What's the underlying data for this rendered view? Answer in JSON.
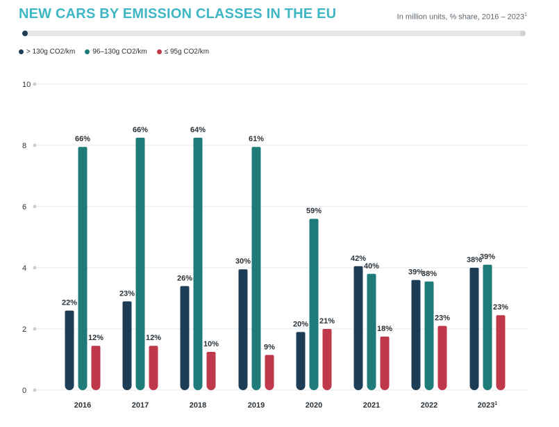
{
  "header": {
    "title": "NEW CARS BY EMISSION CLASSES IN THE EU",
    "subtitle": "In million units, % share, 2016 – 2023",
    "subtitle_sup": "1"
  },
  "legend": [
    {
      "label": "> 130g CO2/km",
      "color": "#1d3c55"
    },
    {
      "label": "96–130g CO2/km",
      "color": "#1f7a7a"
    },
    {
      "label": "≤ 95g CO2/km",
      "color": "#c0394a"
    }
  ],
  "chart_data": {
    "type": "bar",
    "title": "NEW CARS BY EMISSION CLASSES IN THE EU",
    "subtitle": "In million units, % share, 2016 – 2023",
    "xlabel": "",
    "ylabel": "",
    "ylim": [
      0,
      10
    ],
    "yticks": [
      0,
      2,
      4,
      6,
      8,
      10
    ],
    "grid": true,
    "legend_position": "top-left",
    "categories": [
      "2016",
      "2017",
      "2018",
      "2019",
      "2020",
      "2021",
      "2022",
      "2023"
    ],
    "category_superscripts": [
      "",
      "",
      "",
      "",
      "",
      "",
      "",
      "1"
    ],
    "series": [
      {
        "name": "> 130g CO2/km",
        "color": "#1d3c55",
        "values": [
          2.6,
          2.9,
          3.4,
          3.95,
          1.9,
          4.05,
          3.6,
          4.0
        ],
        "labels": [
          "22%",
          "23%",
          "26%",
          "30%",
          "20%",
          "42%",
          "39%",
          "38%"
        ]
      },
      {
        "name": "96–130g CO2/km",
        "color": "#1f7a7a",
        "values": [
          7.95,
          8.25,
          8.25,
          7.95,
          5.6,
          3.8,
          3.55,
          4.1
        ],
        "labels": [
          "66%",
          "66%",
          "64%",
          "61%",
          "59%",
          "40%",
          "38%",
          "39%"
        ]
      },
      {
        "name": "≤ 95g CO2/km",
        "color": "#c0394a",
        "values": [
          1.45,
          1.45,
          1.25,
          1.15,
          2.0,
          1.75,
          2.1,
          2.45
        ],
        "labels": [
          "12%",
          "12%",
          "10%",
          "9%",
          "21%",
          "18%",
          "23%",
          "23%"
        ]
      }
    ]
  }
}
